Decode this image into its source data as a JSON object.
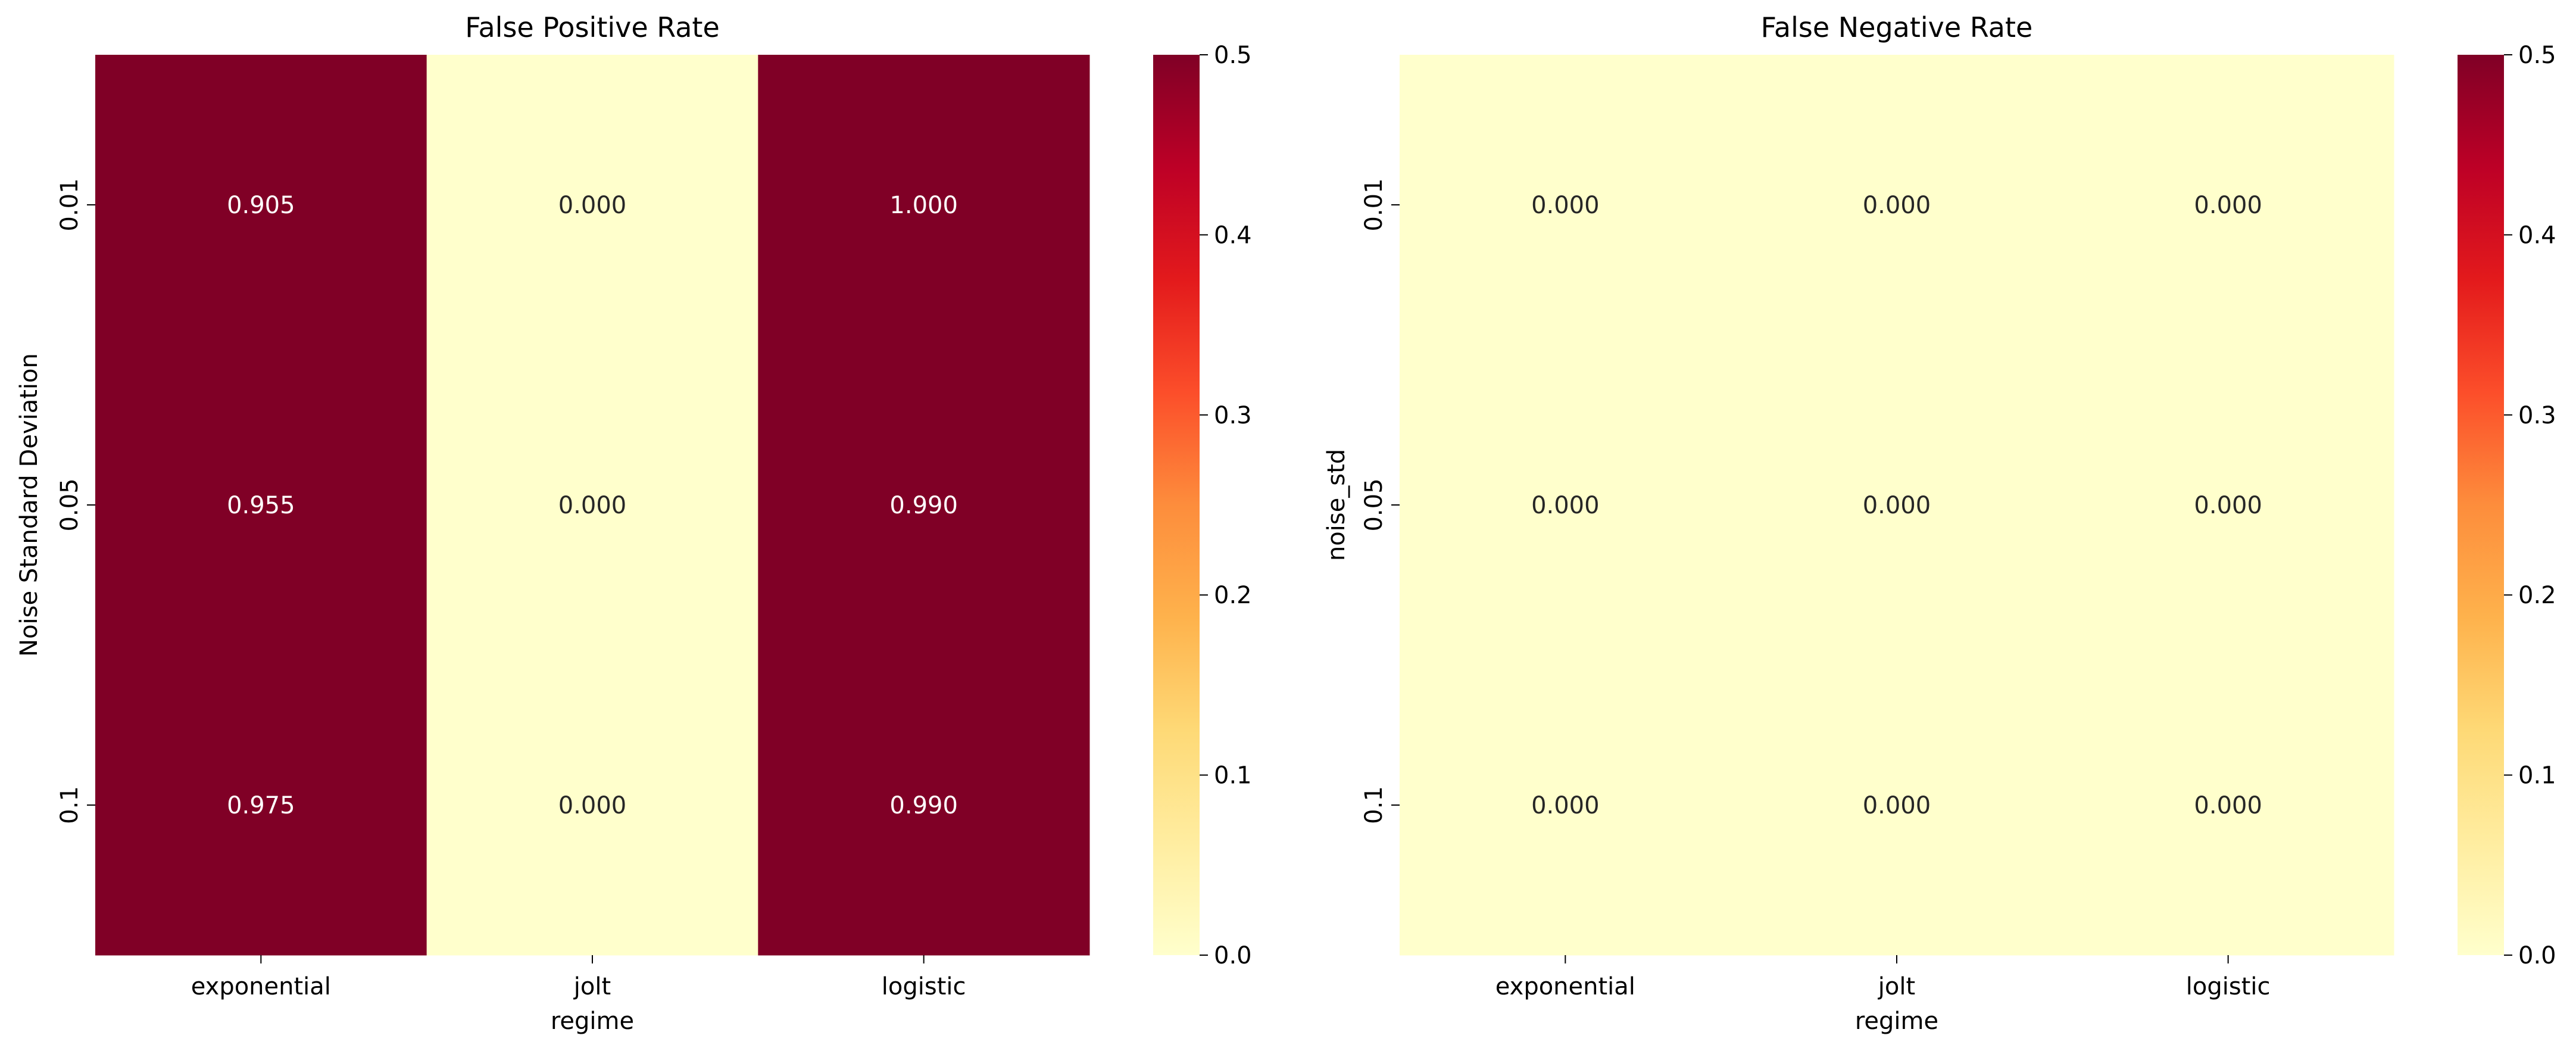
{
  "chart_data": [
    {
      "type": "heatmap",
      "title": "False Positive Rate",
      "xlabel": "regime",
      "ylabel": "Noise Standard Deviation",
      "x_categories": [
        "exponential",
        "jolt",
        "logistic"
      ],
      "y_categories": [
        "0.01",
        "0.05",
        "0.1"
      ],
      "values": [
        [
          0.905,
          0.0,
          1.0
        ],
        [
          0.955,
          0.0,
          0.99
        ],
        [
          0.975,
          0.0,
          0.99
        ]
      ],
      "cell_labels": [
        [
          "0.905",
          "0.000",
          "1.000"
        ],
        [
          "0.955",
          "0.000",
          "0.990"
        ],
        [
          "0.975",
          "0.000",
          "0.990"
        ]
      ],
      "colorscale": "YlOrRd",
      "vmin": 0.0,
      "vmax": 0.5,
      "colorbar_ticks": [
        "0.0",
        "0.1",
        "0.2",
        "0.3",
        "0.4",
        "0.5"
      ]
    },
    {
      "type": "heatmap",
      "title": "False Negative Rate",
      "xlabel": "regime",
      "ylabel": "noise_std",
      "x_categories": [
        "exponential",
        "jolt",
        "logistic"
      ],
      "y_categories": [
        "0.01",
        "0.05",
        "0.1"
      ],
      "values": [
        [
          0.0,
          0.0,
          0.0
        ],
        [
          0.0,
          0.0,
          0.0
        ],
        [
          0.0,
          0.0,
          0.0
        ]
      ],
      "cell_labels": [
        [
          "0.000",
          "0.000",
          "0.000"
        ],
        [
          "0.000",
          "0.000",
          "0.000"
        ],
        [
          "0.000",
          "0.000",
          "0.000"
        ]
      ],
      "colorscale": "YlOrRd",
      "vmin": 0.0,
      "vmax": 0.5,
      "colorbar_ticks": [
        "0.0",
        "0.1",
        "0.2",
        "0.3",
        "0.4",
        "0.5"
      ]
    }
  ]
}
